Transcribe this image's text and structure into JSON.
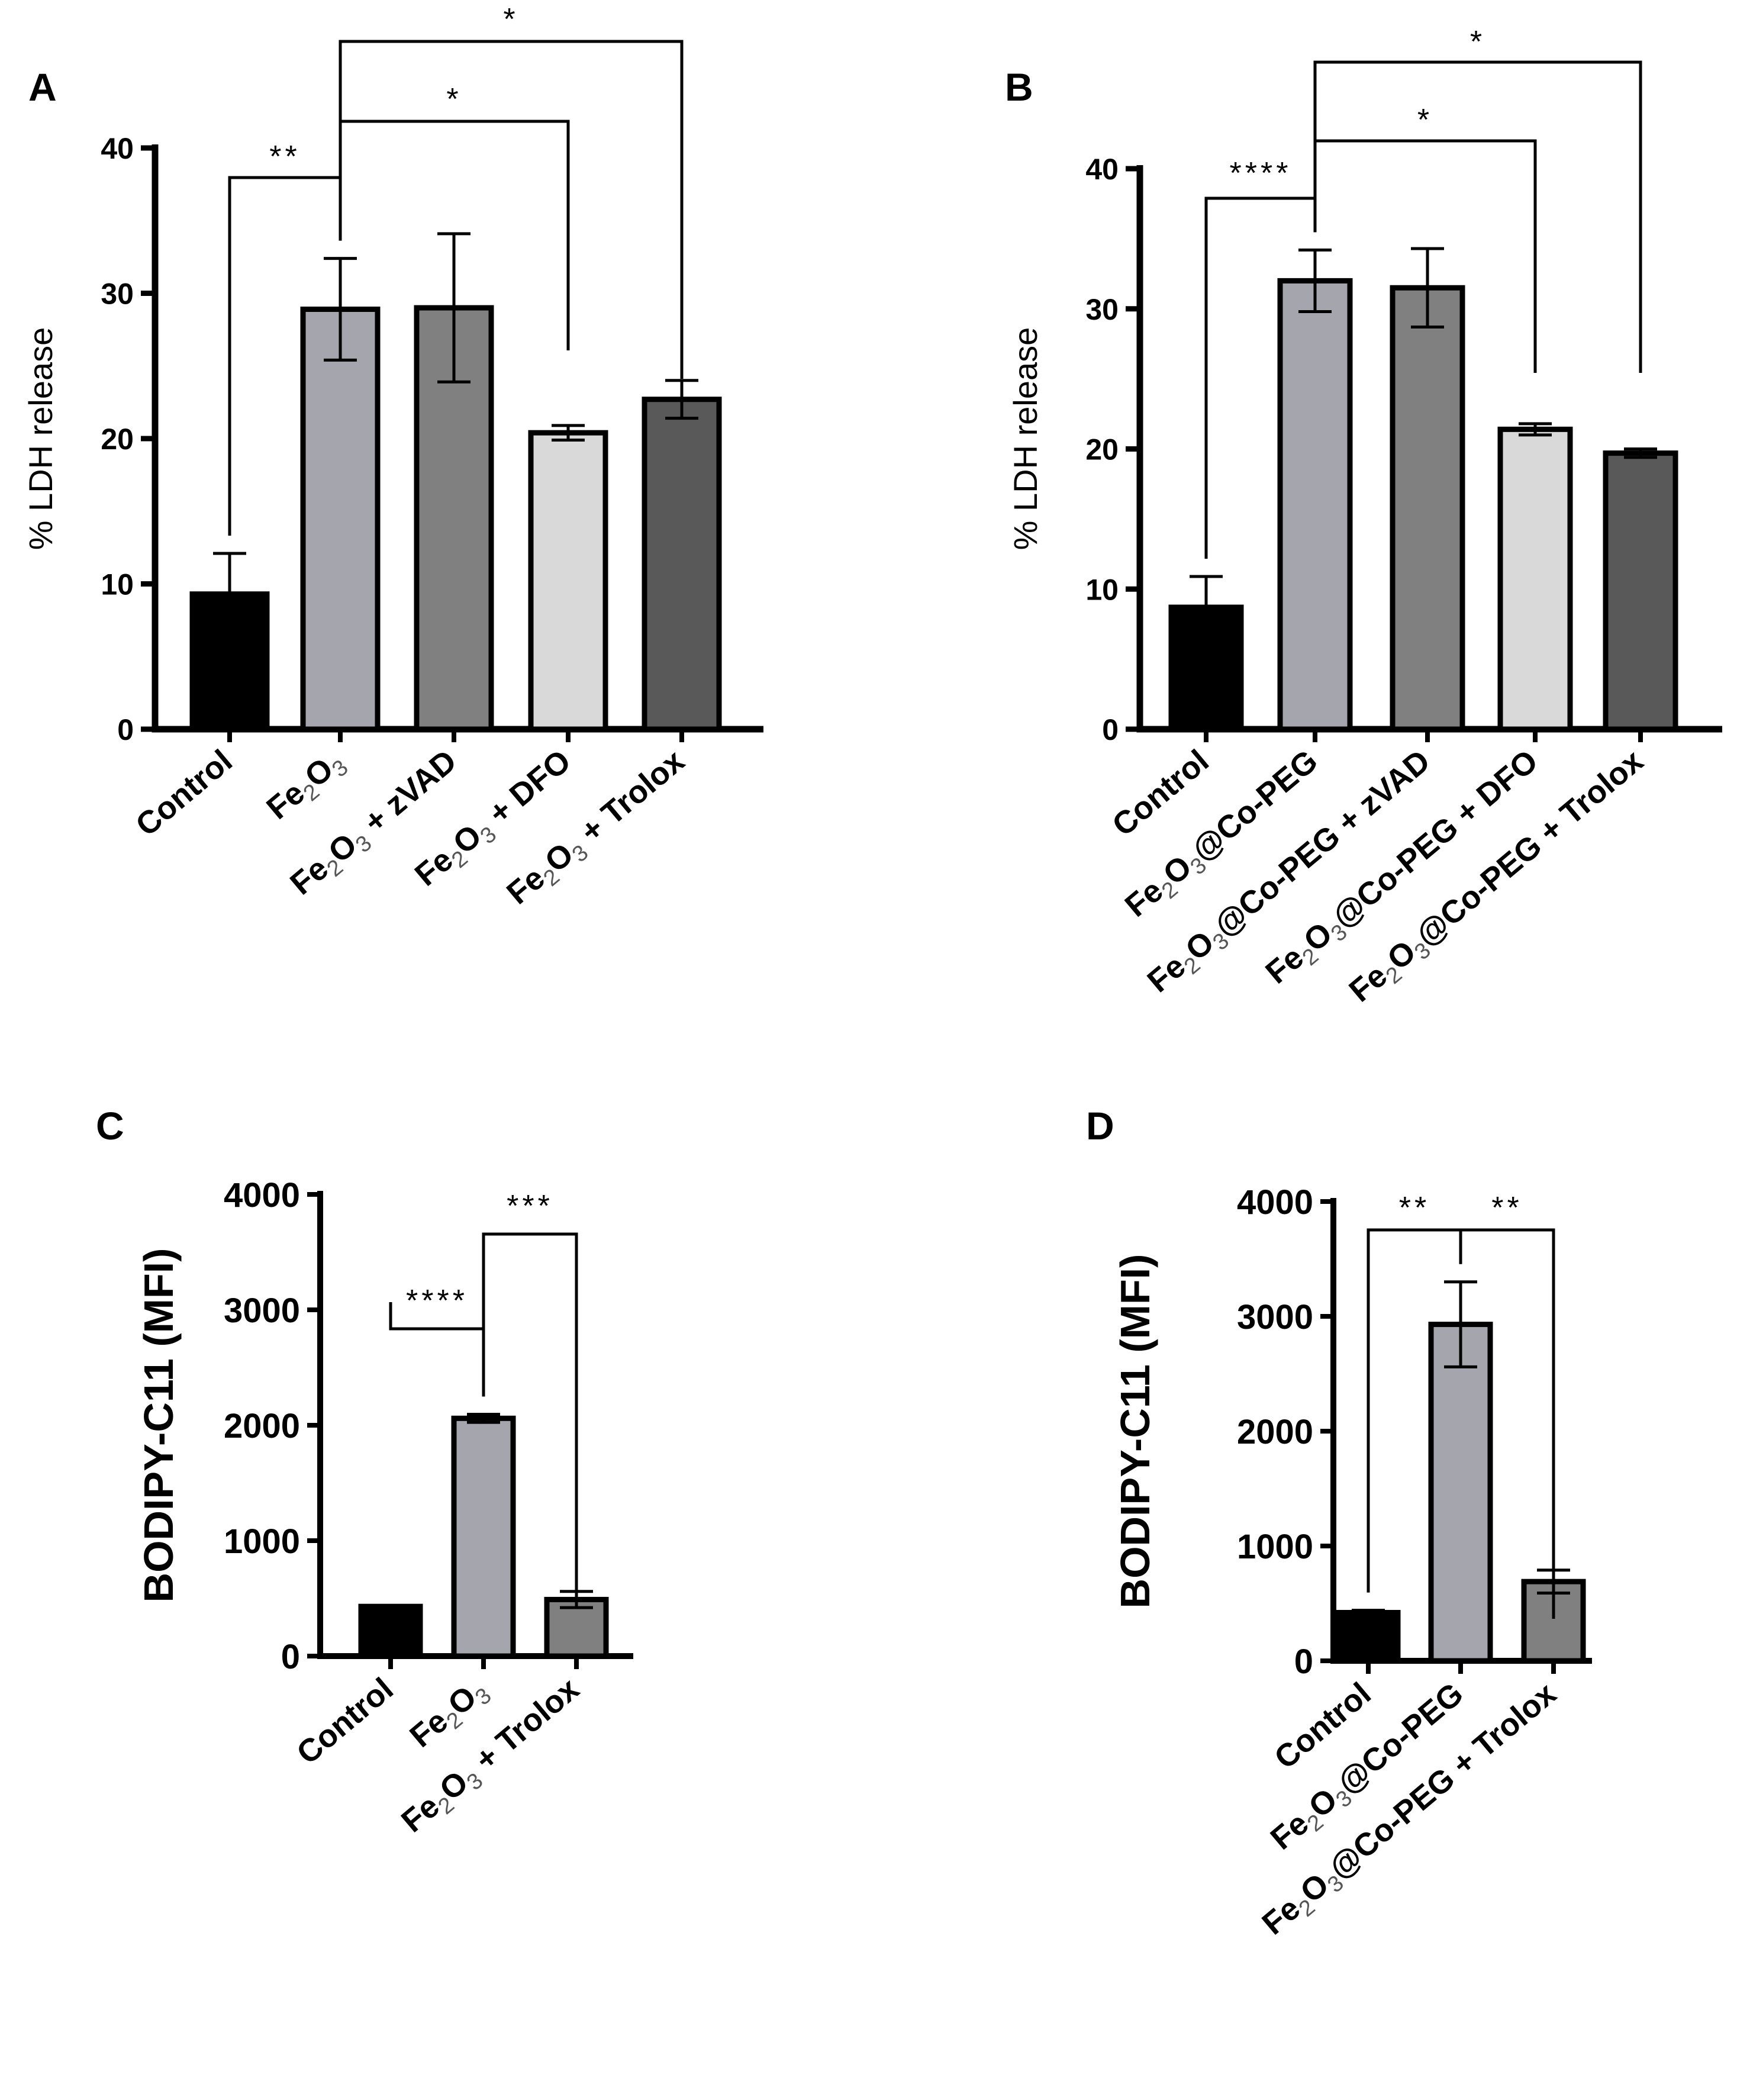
{
  "colors": {
    "black": "#000000",
    "gray_light": "#a5a5ad",
    "gray_mid": "#808080",
    "gray_pale": "#d9d9d9",
    "gray_dark": "#595959"
  },
  "chart_data": [
    {
      "panel": "A",
      "type": "bar",
      "ylabel": "% LDH release",
      "ylim": [
        0,
        40
      ],
      "yticks": [
        "0",
        "10",
        "20",
        "30",
        "40"
      ],
      "categories": [
        {
          "main": "Control",
          "sub": ""
        },
        {
          "main": "Fe",
          "sub": "2",
          "main2": "O",
          "sub2": "3",
          "rest": ""
        },
        {
          "main": "Fe",
          "sub": "2",
          "main2": "O",
          "sub2": "3",
          "rest": " + zVAD"
        },
        {
          "main": "Fe",
          "sub": "2",
          "main2": "O",
          "sub2": "3",
          "rest": " + DFO"
        },
        {
          "main": "Fe",
          "sub": "2",
          "main2": "O",
          "sub2": "3",
          "rest": " + Trolox"
        }
      ],
      "values": [
        9.3,
        28.9,
        29.0,
        20.4,
        22.7
      ],
      "errors": [
        2.8,
        3.5,
        5.1,
        0.5,
        1.3
      ],
      "fills": [
        "#000000",
        "#a5a5ad",
        "#808080",
        "#d9d9d9",
        "#595959"
      ],
      "comparisons": [
        {
          "from": 0,
          "to": 1,
          "label": "**"
        },
        {
          "from": 1,
          "to": 3,
          "label": "*"
        },
        {
          "from": 1,
          "to": 4,
          "label": "*"
        }
      ]
    },
    {
      "panel": "B",
      "type": "bar",
      "ylabel": "% LDH release",
      "ylim": [
        0,
        40
      ],
      "yticks": [
        "0",
        "10",
        "20",
        "30",
        "40"
      ],
      "categories": [
        {
          "main": "Control",
          "sub": ""
        },
        {
          "main": "Fe",
          "sub": "2",
          "main2": "O",
          "sub2": "3",
          "rest": "@Co-PEG"
        },
        {
          "main": "Fe",
          "sub": "2",
          "main2": "O",
          "sub2": "3",
          "rest": "@Co-PEG + zVAD"
        },
        {
          "main": "Fe",
          "sub": "2",
          "main2": "O",
          "sub2": "3",
          "rest": "@Co-PEG + DFO"
        },
        {
          "main": "Fe",
          "sub": "2",
          "main2": "O",
          "sub2": "3",
          "rest": "@Co-PEG + Trolox"
        }
      ],
      "values": [
        8.7,
        32.0,
        31.5,
        21.4,
        19.7
      ],
      "errors": [
        2.2,
        2.2,
        2.8,
        0.4,
        0.3
      ],
      "fills": [
        "#000000",
        "#a5a5ad",
        "#808080",
        "#d9d9d9",
        "#595959"
      ],
      "comparisons": [
        {
          "from": 0,
          "to": 1,
          "label": "****"
        },
        {
          "from": 1,
          "to": 3,
          "label": "*"
        },
        {
          "from": 1,
          "to": 4,
          "label": "*"
        }
      ]
    },
    {
      "panel": "C",
      "type": "bar",
      "ylabel": "BODIPY-C11 (MFI)",
      "ylim": [
        0,
        4000
      ],
      "yticks": [
        "0",
        "1000",
        "2000",
        "3000",
        "4000"
      ],
      "categories": [
        {
          "main": "Control",
          "sub": ""
        },
        {
          "main": "Fe",
          "sub": "2",
          "main2": "O",
          "sub2": "3",
          "rest": ""
        },
        {
          "main": "Fe",
          "sub": "2",
          "main2": "O",
          "sub2": "3",
          "rest": " + Trolox"
        }
      ],
      "values": [
        430,
        2060,
        490
      ],
      "errors": [
        0,
        35,
        70
      ],
      "fills": [
        "#000000",
        "#a5a5ad",
        "#808080"
      ],
      "comparisons": [
        {
          "from": 0,
          "to": 1,
          "label": "****"
        },
        {
          "from": 1,
          "to": 2,
          "label": "***"
        }
      ]
    },
    {
      "panel": "D",
      "type": "bar",
      "ylabel": "BODIPY-C11 (MFI)",
      "ylim": [
        0,
        4000
      ],
      "yticks": [
        "0",
        "1000",
        "2000",
        "3000",
        "4000"
      ],
      "categories": [
        {
          "main": "Control",
          "sub": ""
        },
        {
          "main": "Fe",
          "sub": "2",
          "main2": "O",
          "sub2": "3",
          "rest": "@Co-PEG"
        },
        {
          "main": "Fe",
          "sub": "2",
          "main2": "O",
          "sub2": "3",
          "rest": "@Co-PEG + Trolox"
        }
      ],
      "values": [
        420,
        2930,
        690
      ],
      "errors": [
        20,
        370,
        100
      ],
      "fills": [
        "#000000",
        "#a5a5ad",
        "#808080"
      ],
      "comparisons": [
        {
          "from": 0,
          "to": 1,
          "label": "**"
        },
        {
          "from": 1,
          "to": 2,
          "label": "**"
        }
      ]
    }
  ]
}
